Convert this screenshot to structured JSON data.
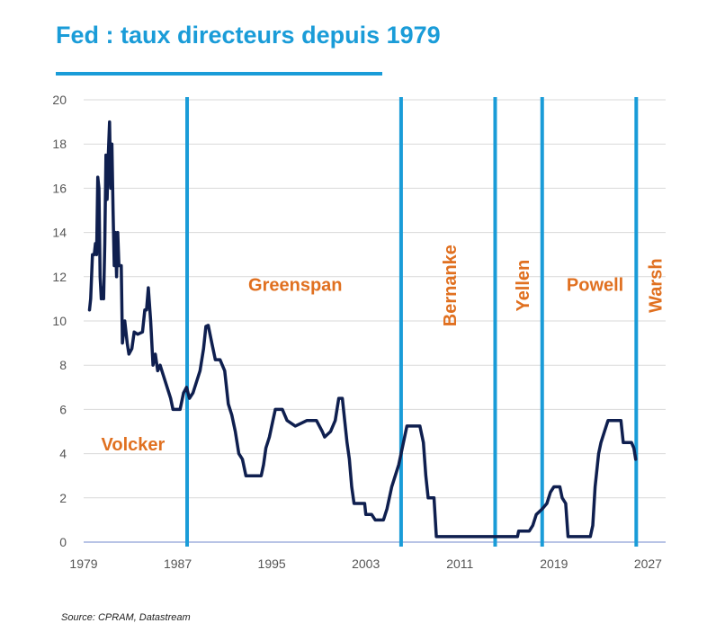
{
  "title": "Fed : taux directeurs depuis 1979",
  "source": "Source: CPRAM, Datastream",
  "colors": {
    "title": "#1a9cd8",
    "series": "#0f1f4f",
    "dividers": "#1a9cd8",
    "labels": "#e07020",
    "grid": "#d9d9d9"
  },
  "chart_data": {
    "type": "line",
    "title": "Fed : taux directeurs depuis 1979",
    "xlabel": "",
    "ylabel": "",
    "xlim": [
      1979,
      2028.5
    ],
    "ylim": [
      0,
      20
    ],
    "x_ticks": [
      "1979",
      "1987",
      "1995",
      "2003",
      "2011",
      "2019",
      "2027"
    ],
    "y_ticks": [
      "0",
      "2",
      "4",
      "6",
      "8",
      "10",
      "12",
      "14",
      "16",
      "18",
      "20"
    ],
    "grid": true,
    "dividers": [
      1987.8,
      2006.0,
      2014.0,
      2018.0,
      2026.0
    ],
    "era_labels": [
      {
        "text": "Volcker",
        "x": 1983.2,
        "y": 4.4,
        "orientation": "horizontal"
      },
      {
        "text": "Greenspan",
        "x": 1997.0,
        "y": 11.6,
        "orientation": "horizontal"
      },
      {
        "text": "Bernanke",
        "x": 2010.2,
        "y": 11.6,
        "orientation": "vertical"
      },
      {
        "text": "Yellen",
        "x": 2016.4,
        "y": 11.6,
        "orientation": "vertical"
      },
      {
        "text": "Powell",
        "x": 2022.5,
        "y": 11.6,
        "orientation": "horizontal"
      },
      {
        "text": "Warsh",
        "x": 2027.7,
        "y": 11.6,
        "orientation": "vertical"
      }
    ],
    "series": [
      {
        "points": [
          [
            1979.5,
            10.5
          ],
          [
            1979.6,
            11.0
          ],
          [
            1979.75,
            13.0
          ],
          [
            1979.9,
            13.0
          ],
          [
            1980.0,
            13.5
          ],
          [
            1980.1,
            13.0
          ],
          [
            1980.2,
            16.5
          ],
          [
            1980.3,
            16.0
          ],
          [
            1980.4,
            12.0
          ],
          [
            1980.5,
            11.0
          ],
          [
            1980.6,
            11.5
          ],
          [
            1980.7,
            11.0
          ],
          [
            1980.8,
            13.5
          ],
          [
            1980.9,
            17.5
          ],
          [
            1981.0,
            15.5
          ],
          [
            1981.1,
            17.5
          ],
          [
            1981.2,
            19.0
          ],
          [
            1981.3,
            16.0
          ],
          [
            1981.4,
            18.0
          ],
          [
            1981.5,
            15.0
          ],
          [
            1981.6,
            12.5
          ],
          [
            1981.7,
            14.0
          ],
          [
            1981.8,
            12.0
          ],
          [
            1981.9,
            14.0
          ],
          [
            1982.0,
            12.5
          ],
          [
            1982.2,
            12.5
          ],
          [
            1982.3,
            9.0
          ],
          [
            1982.5,
            10.0
          ],
          [
            1982.7,
            9.0
          ],
          [
            1982.85,
            8.5
          ],
          [
            1983.1,
            8.75
          ],
          [
            1983.3,
            9.5
          ],
          [
            1983.6,
            9.4
          ],
          [
            1984.0,
            9.5
          ],
          [
            1984.2,
            10.5
          ],
          [
            1984.35,
            10.5
          ],
          [
            1984.5,
            11.5
          ],
          [
            1984.7,
            10.0
          ],
          [
            1984.9,
            8.0
          ],
          [
            1985.1,
            8.5
          ],
          [
            1985.3,
            7.75
          ],
          [
            1985.5,
            8.0
          ],
          [
            1985.8,
            7.5
          ],
          [
            1986.1,
            7.0
          ],
          [
            1986.4,
            6.5
          ],
          [
            1986.6,
            6.0
          ],
          [
            1986.9,
            6.0
          ],
          [
            1987.2,
            6.0
          ],
          [
            1987.5,
            6.75
          ],
          [
            1987.75,
            7.0
          ],
          [
            1988.0,
            6.5
          ],
          [
            1988.3,
            6.75
          ],
          [
            1988.6,
            7.25
          ],
          [
            1988.9,
            7.75
          ],
          [
            1989.2,
            8.75
          ],
          [
            1989.4,
            9.75
          ],
          [
            1989.6,
            9.8
          ],
          [
            1989.9,
            9.0
          ],
          [
            1990.2,
            8.25
          ],
          [
            1990.6,
            8.25
          ],
          [
            1991.0,
            7.75
          ],
          [
            1991.3,
            6.25
          ],
          [
            1991.6,
            5.75
          ],
          [
            1991.9,
            5.0
          ],
          [
            1992.2,
            4.0
          ],
          [
            1992.5,
            3.75
          ],
          [
            1992.8,
            3.0
          ],
          [
            1993.5,
            3.0
          ],
          [
            1994.1,
            3.0
          ],
          [
            1994.3,
            3.5
          ],
          [
            1994.5,
            4.25
          ],
          [
            1994.8,
            4.75
          ],
          [
            1995.1,
            5.5
          ],
          [
            1995.3,
            6.0
          ],
          [
            1995.9,
            6.0
          ],
          [
            1996.3,
            5.5
          ],
          [
            1997.0,
            5.25
          ],
          [
            1998.0,
            5.5
          ],
          [
            1998.8,
            5.5
          ],
          [
            1999.3,
            5.0
          ],
          [
            1999.5,
            4.75
          ],
          [
            2000.0,
            5.0
          ],
          [
            2000.4,
            5.5
          ],
          [
            2000.7,
            6.5
          ],
          [
            2001.0,
            6.5
          ],
          [
            2001.2,
            5.5
          ],
          [
            2001.4,
            4.5
          ],
          [
            2001.6,
            3.75
          ],
          [
            2001.8,
            2.5
          ],
          [
            2002.0,
            1.75
          ],
          [
            2002.9,
            1.75
          ],
          [
            2003.0,
            1.25
          ],
          [
            2003.5,
            1.25
          ],
          [
            2003.8,
            1.0
          ],
          [
            2004.5,
            1.0
          ],
          [
            2004.8,
            1.5
          ],
          [
            2005.2,
            2.5
          ],
          [
            2005.5,
            3.0
          ],
          [
            2005.8,
            3.5
          ],
          [
            2006.0,
            4.0
          ],
          [
            2006.3,
            4.75
          ],
          [
            2006.5,
            5.25
          ],
          [
            2007.6,
            5.25
          ],
          [
            2007.9,
            4.5
          ],
          [
            2008.1,
            3.0
          ],
          [
            2008.3,
            2.0
          ],
          [
            2008.8,
            2.0
          ],
          [
            2009.0,
            0.25
          ],
          [
            2014.0,
            0.25
          ],
          [
            2015.9,
            0.25
          ],
          [
            2016.0,
            0.5
          ],
          [
            2016.9,
            0.5
          ],
          [
            2017.2,
            0.75
          ],
          [
            2017.5,
            1.25
          ],
          [
            2018.0,
            1.5
          ],
          [
            2018.4,
            1.75
          ],
          [
            2018.7,
            2.25
          ],
          [
            2019.0,
            2.5
          ],
          [
            2019.5,
            2.5
          ],
          [
            2019.7,
            2.0
          ],
          [
            2020.0,
            1.75
          ],
          [
            2020.2,
            0.25
          ],
          [
            2022.1,
            0.25
          ],
          [
            2022.3,
            0.75
          ],
          [
            2022.5,
            2.5
          ],
          [
            2022.8,
            4.0
          ],
          [
            2023.0,
            4.5
          ],
          [
            2023.3,
            5.0
          ],
          [
            2023.6,
            5.5
          ],
          [
            2024.7,
            5.5
          ],
          [
            2024.8,
            5.0
          ],
          [
            2024.9,
            4.5
          ],
          [
            2025.6,
            4.5
          ],
          [
            2025.8,
            4.25
          ],
          [
            2025.95,
            3.75
          ]
        ]
      }
    ]
  }
}
